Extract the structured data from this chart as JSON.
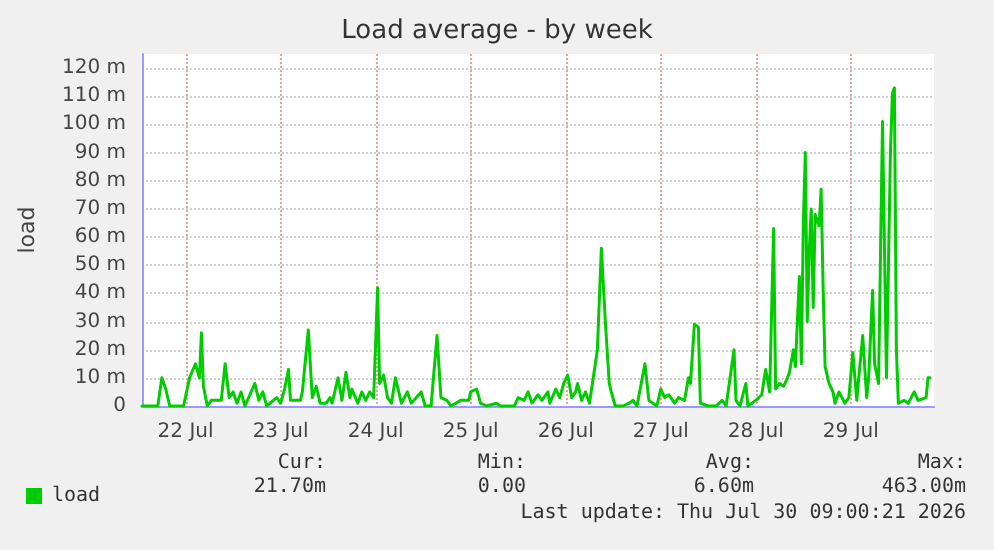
{
  "chart_data": {
    "type": "line",
    "title": "Load average - by week",
    "ylabel": "load",
    "x": [
      "2026-07-22T01:00",
      "2026-07-22T05:00",
      "2026-07-22T06:00",
      "2026-07-22T07:00",
      "2026-07-22T08:00",
      "2026-07-22T11:30",
      "2026-07-22T13:00",
      "2026-07-22T14:30",
      "2026-07-22T15:30",
      "2026-07-22T16:00",
      "2026-07-22T16:30",
      "2026-07-22T17:30",
      "2026-07-22T18:30",
      "2026-07-22T21:00",
      "2026-07-22T22:00",
      "2026-07-22T23:00",
      "2026-07-23T00:00",
      "2026-07-23T01:00",
      "2026-07-23T02:00",
      "2026-07-23T03:00",
      "2026-07-23T05:30",
      "2026-07-23T06:30",
      "2026-07-23T07:30",
      "2026-07-23T08:30",
      "2026-07-23T11:00",
      "2026-07-23T12:00",
      "2026-07-23T13:00",
      "2026-07-23T14:00",
      "2026-07-23T14:30",
      "2026-07-23T17:00",
      "2026-07-23T17:30",
      "2026-07-23T19:00",
      "2026-07-23T20:00",
      "2026-07-23T21:00",
      "2026-07-23T22:00",
      "2026-07-23T23:30",
      "2026-07-24T00:30",
      "2026-07-24T01:00",
      "2026-07-24T02:30",
      "2026-07-24T03:30",
      "2026-07-24T04:30",
      "2026-07-24T05:30",
      "2026-07-24T06:00",
      "2026-07-24T07:30",
      "2026-07-24T08:30",
      "2026-07-24T09:30",
      "2026-07-24T10:30",
      "2026-07-24T11:30",
      "2026-07-24T12:30",
      "2026-07-24T13:00",
      "2026-07-24T14:00",
      "2026-07-24T15:00",
      "2026-07-24T16:00",
      "2026-07-24T17:00",
      "2026-07-24T18:30",
      "2026-07-24T20:00",
      "2026-07-24T21:00",
      "2026-07-24T23:30",
      "2026-07-25T00:30",
      "2026-07-25T02:00",
      "2026-07-25T03:30",
      "2026-07-25T04:30",
      "2026-07-25T06:00",
      "2026-07-25T07:00",
      "2026-07-25T09:30",
      "2026-07-25T11:30",
      "2026-07-25T12:00",
      "2026-07-25T13:30",
      "2026-07-25T14:30",
      "2026-07-25T16:00",
      "2026-07-25T18:30",
      "2026-07-25T19:30",
      "2026-07-25T23:00",
      "2026-07-26T00:00",
      "2026-07-26T01:30",
      "2026-07-26T02:30",
      "2026-07-26T03:30",
      "2026-07-26T05:00",
      "2026-07-26T06:00",
      "2026-07-26T07:30",
      "2026-07-26T08:00",
      "2026-07-26T09:30",
      "2026-07-26T10:30",
      "2026-07-26T11:30",
      "2026-07-26T12:30",
      "2026-07-26T13:30",
      "2026-07-26T14:30",
      "2026-07-26T15:00",
      "2026-07-26T16:00",
      "2026-07-26T17:00",
      "2026-07-26T18:00",
      "2026-07-26T20:00",
      "2026-07-26T21:00",
      "2026-07-26T22:00",
      "2026-07-26T23:00",
      "2026-07-26T23:30",
      "2026-07-27T00:30",
      "2026-07-27T02:30",
      "2026-07-27T04:00",
      "2026-07-27T05:00",
      "2026-07-27T06:00",
      "2026-07-27T08:00",
      "2026-07-27T09:00",
      "2026-07-27T11:00",
      "2026-07-27T12:00",
      "2026-07-27T13:00",
      "2026-07-27T14:00",
      "2026-07-27T15:30",
      "2026-07-27T16:30",
      "2026-07-27T18:00",
      "2026-07-27T19:00",
      "2026-07-27T19:30",
      "2026-07-27T20:30",
      "2026-07-27T21:30",
      "2026-07-27T22:00",
      "2026-07-28T00:00",
      "2026-07-28T02:00",
      "2026-07-28T03:30",
      "2026-07-28T04:30",
      "2026-07-28T06:30",
      "2026-07-28T07:00",
      "2026-07-28T08:00",
      "2026-07-28T09:30",
      "2026-07-28T10:00",
      "2026-07-28T12:00",
      "2026-07-28T13:30",
      "2026-07-28T14:30",
      "2026-07-28T15:30",
      "2026-07-28T16:30",
      "2026-07-28T17:00",
      "2026-07-28T18:00",
      "2026-07-28T19:00",
      "2026-07-28T20:00",
      "2026-07-28T20:30",
      "2026-07-28T21:30",
      "2026-07-28T22:00",
      "2026-07-28T23:00",
      "2026-07-28T23:30",
      "2026-07-29T00:00",
      "2026-07-29T00:30",
      "2026-07-29T01:00",
      "2026-07-29T01:30",
      "2026-07-29T02:00",
      "2026-07-29T02:30",
      "2026-07-29T03:00",
      "2026-07-29T04:00",
      "2026-07-29T04:30",
      "2026-07-29T05:00",
      "2026-07-29T05:30",
      "2026-07-29T06:30",
      "2026-07-29T07:30",
      "2026-07-29T08:00",
      "2026-07-29T09:00",
      "2026-07-29T10:30",
      "2026-07-29T11:30",
      "2026-07-29T12:30",
      "2026-07-29T13:30",
      "2026-07-29T14:00",
      "2026-07-29T15:00",
      "2026-07-29T16:00",
      "2026-07-29T16:30",
      "2026-07-29T17:30",
      "2026-07-29T18:00",
      "2026-07-29T19:00",
      "2026-07-29T20:00",
      "2026-07-29T21:00",
      "2026-07-29T22:00",
      "2026-07-29T22:30",
      "2026-07-29T23:00",
      "2026-07-29T23:30",
      "2026-07-30T00:00",
      "2026-07-30T01:30",
      "2026-07-30T02:30",
      "2026-07-30T04:00",
      "2026-07-30T05:00",
      "2026-07-30T07:00",
      "2026-07-30T07:30",
      "2026-07-30T08:00"
    ],
    "series": [
      {
        "name": "load",
        "color": "#00cc00",
        "values": [
          0,
          0,
          10,
          6,
          0,
          0,
          10,
          15,
          10,
          26,
          7,
          0,
          2,
          2,
          15,
          3,
          5,
          1,
          5,
          0,
          8,
          2,
          5,
          0,
          3,
          1,
          6,
          13,
          2,
          2,
          5,
          27,
          3,
          7,
          1,
          1,
          3,
          1,
          10,
          2,
          12,
          3,
          6,
          1,
          5,
          2,
          5,
          3,
          42,
          8,
          11,
          3,
          1,
          10,
          1,
          5,
          1,
          5,
          0,
          0,
          25,
          3,
          2,
          0,
          2,
          2,
          5,
          6,
          1,
          0,
          1,
          0,
          0,
          3,
          2,
          5,
          1,
          4,
          2,
          5,
          1,
          6,
          3,
          8,
          11,
          3,
          5,
          8,
          2,
          5,
          1,
          20,
          56,
          30,
          8,
          5,
          0,
          0,
          1,
          2,
          0,
          15,
          2,
          0,
          6,
          3,
          4,
          1,
          3,
          2,
          10,
          8,
          29,
          28,
          1,
          0,
          0,
          2,
          0,
          20,
          2,
          0,
          8,
          0,
          2,
          4,
          13,
          5,
          63,
          6,
          8,
          7,
          10,
          12,
          20,
          14,
          46,
          15,
          65,
          90,
          30,
          55,
          70,
          35,
          68,
          64,
          77,
          42,
          14,
          8,
          5,
          1,
          5,
          1,
          3,
          19,
          2,
          10,
          25,
          3,
          10,
          41,
          15,
          8,
          101,
          10,
          90,
          111,
          113,
          20,
          1,
          2,
          1,
          5,
          2,
          3,
          10,
          10
        ]
      }
    ],
    "xlim": [
      "2026-07-22T01:00",
      "2026-07-30T09:00"
    ],
    "xticks": [
      {
        "value": "2026-07-22T12:00",
        "label": "22 Jul"
      },
      {
        "value": "2026-07-23T12:00",
        "label": "23 Jul"
      },
      {
        "value": "2026-07-24T12:00",
        "label": "24 Jul"
      },
      {
        "value": "2026-07-25T12:00",
        "label": "25 Jul"
      },
      {
        "value": "2026-07-26T12:00",
        "label": "26 Jul"
      },
      {
        "value": "2026-07-27T12:00",
        "label": "27 Jul"
      },
      {
        "value": "2026-07-28T12:00",
        "label": "28 Jul"
      },
      {
        "value": "2026-07-29T12:00",
        "label": "29 Jul"
      }
    ],
    "ylim": [
      0,
      125
    ],
    "yticks": [
      0,
      {
        "value": 10,
        "label": "10 m"
      },
      {
        "value": 20,
        "label": "20 m"
      },
      {
        "value": 30,
        "label": "30 m"
      },
      {
        "value": 40,
        "label": "40 m"
      },
      {
        "value": 50,
        "label": "50 m"
      },
      {
        "value": 60,
        "label": "60 m"
      },
      {
        "value": 70,
        "label": "70 m"
      },
      {
        "value": 80,
        "label": "80 m"
      },
      {
        "value": 90,
        "label": "90 m"
      },
      {
        "value": 100,
        "label": "100 m"
      },
      {
        "value": 110,
        "label": "110 m"
      },
      {
        "value": 120,
        "label": "120 m"
      }
    ],
    "grid": true,
    "legend": "bottom left",
    "marker": "none",
    "line_style": "solid",
    "annotations": [
      "Cur:",
      "21.70m",
      "Min:",
      "0.00",
      "Avg:",
      "6.60m",
      "Max:",
      "463.00m",
      "Last update: Thu Jul 30 09:00:21 2026"
    ]
  }
}
